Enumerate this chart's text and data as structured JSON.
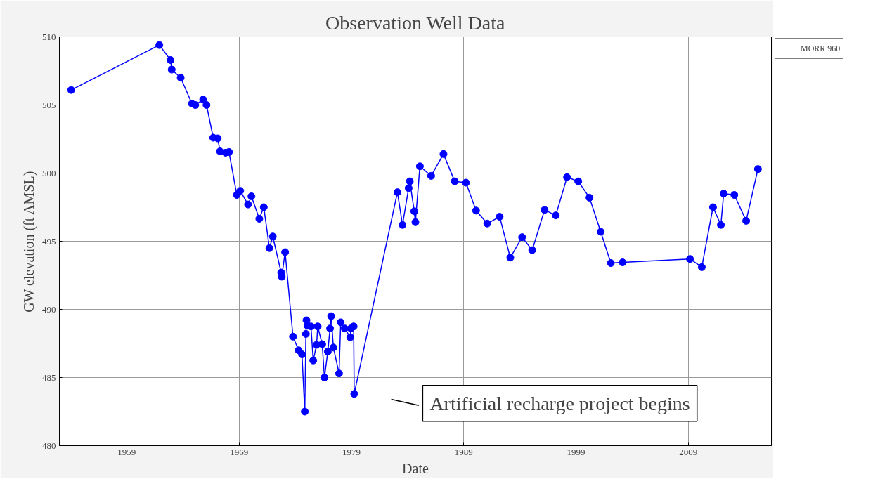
{
  "chart_data": {
    "type": "line",
    "title": "Observation Well Data",
    "xlabel": "Date",
    "ylabel": "GW elevation (ft AMSL)",
    "xlim": [
      1953,
      2016.4
    ],
    "xticks": [
      1959,
      1969,
      1979,
      1989,
      1999,
      2009
    ],
    "ylim": [
      480,
      510
    ],
    "yticks": [
      480,
      485,
      490,
      495,
      500,
      505,
      510
    ],
    "grid": true,
    "legend": "top right",
    "marker": "circle",
    "line_style": "solid",
    "annotations": [
      "Artificial recharge project begins"
    ],
    "series": [
      {
        "name": "MORR 960",
        "color": "#0000ff",
        "x": [
          1954.05,
          1961.9,
          1962.9,
          1963.0,
          1963.8,
          1964.8,
          1965.1,
          1965.8,
          1966.1,
          1966.7,
          1967.1,
          1967.3,
          1967.8,
          1968.1,
          1968.8,
          1969.1,
          1969.8,
          1970.1,
          1970.8,
          1971.2,
          1971.7,
          1972.0,
          1972.75,
          1972.8,
          1973.1,
          1973.8,
          1974.3,
          1974.6,
          1974.85,
          1974.95,
          1975.0,
          1975.1,
          1975.4,
          1975.6,
          1975.9,
          1976.0,
          1976.4,
          1976.6,
          1976.9,
          1977.1,
          1977.2,
          1977.4,
          1977.9,
          1978.05,
          1978.4,
          1978.9,
          1978.95,
          1979.2,
          1979.25,
          1983.1,
          1983.55,
          1984.1,
          1984.2,
          1984.6,
          1984.7,
          1985.1,
          1986.1,
          1987.2,
          1988.2,
          1989.2,
          1990.1,
          1991.1,
          1992.2,
          1993.15,
          1994.2,
          1995.1,
          1996.2,
          1997.2,
          1998.2,
          1999.2,
          2000.2,
          2001.2,
          2002.1,
          2003.15,
          2009.15,
          2010.2,
          2011.2,
          2011.9,
          2012.15,
          2013.1,
          2014.15,
          2015.2
        ],
        "values": [
          506.1,
          509.4,
          508.3,
          507.6,
          507.0,
          505.1,
          505.0,
          505.4,
          505.0,
          502.6,
          502.55,
          501.6,
          501.5,
          501.55,
          498.4,
          498.7,
          497.7,
          498.3,
          496.65,
          497.5,
          494.5,
          495.35,
          492.7,
          492.4,
          494.2,
          488.0,
          487.0,
          486.7,
          482.5,
          488.2,
          489.2,
          488.8,
          488.75,
          486.25,
          487.4,
          488.75,
          487.45,
          485.0,
          486.9,
          488.6,
          489.5,
          487.2,
          485.3,
          489.05,
          488.6,
          487.95,
          488.6,
          488.75,
          483.8,
          498.6,
          496.2,
          498.9,
          499.4,
          497.2,
          496.4,
          500.5,
          499.8,
          501.4,
          499.4,
          499.3,
          497.25,
          496.3,
          496.8,
          493.8,
          495.3,
          494.35,
          497.3,
          496.9,
          499.7,
          499.4,
          498.2,
          495.7,
          493.4,
          493.45,
          493.7,
          493.1,
          497.5,
          496.2,
          498.5,
          498.4,
          496.5,
          500.3
        ]
      }
    ]
  }
}
